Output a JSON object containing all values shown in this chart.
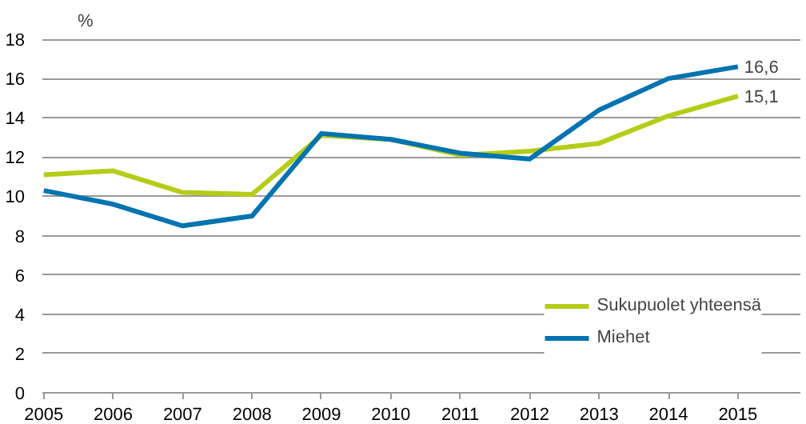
{
  "chart_data": {
    "type": "line",
    "ylabel": "%",
    "categories": [
      "2005",
      "2006",
      "2007",
      "2008",
      "2009",
      "2010",
      "2011",
      "2012",
      "2013",
      "2014",
      "2015"
    ],
    "series": [
      {
        "name": "Sukupuolet yhteensä",
        "color": "#b5cc18",
        "values": [
          11.1,
          11.3,
          10.2,
          10.1,
          13.1,
          12.9,
          12.1,
          12.3,
          12.7,
          14.1,
          15.1
        ],
        "value_labels": [
          null,
          null,
          null,
          null,
          null,
          null,
          null,
          null,
          null,
          null,
          "15,1"
        ]
      },
      {
        "name": "Miehet",
        "color": "#0073b0",
        "values": [
          10.3,
          9.6,
          8.5,
          9.0,
          13.2,
          12.9,
          12.2,
          11.9,
          14.4,
          16.0,
          16.6
        ],
        "value_labels": [
          null,
          null,
          null,
          null,
          null,
          null,
          null,
          null,
          null,
          null,
          "16,6"
        ]
      }
    ],
    "ylim": [
      0,
      18
    ],
    "yticks": [
      0,
      2,
      4,
      6,
      8,
      10,
      12,
      14,
      16,
      18
    ],
    "grid": "y",
    "legend": "bottom right",
    "marker": "none",
    "line_style": "solid"
  }
}
